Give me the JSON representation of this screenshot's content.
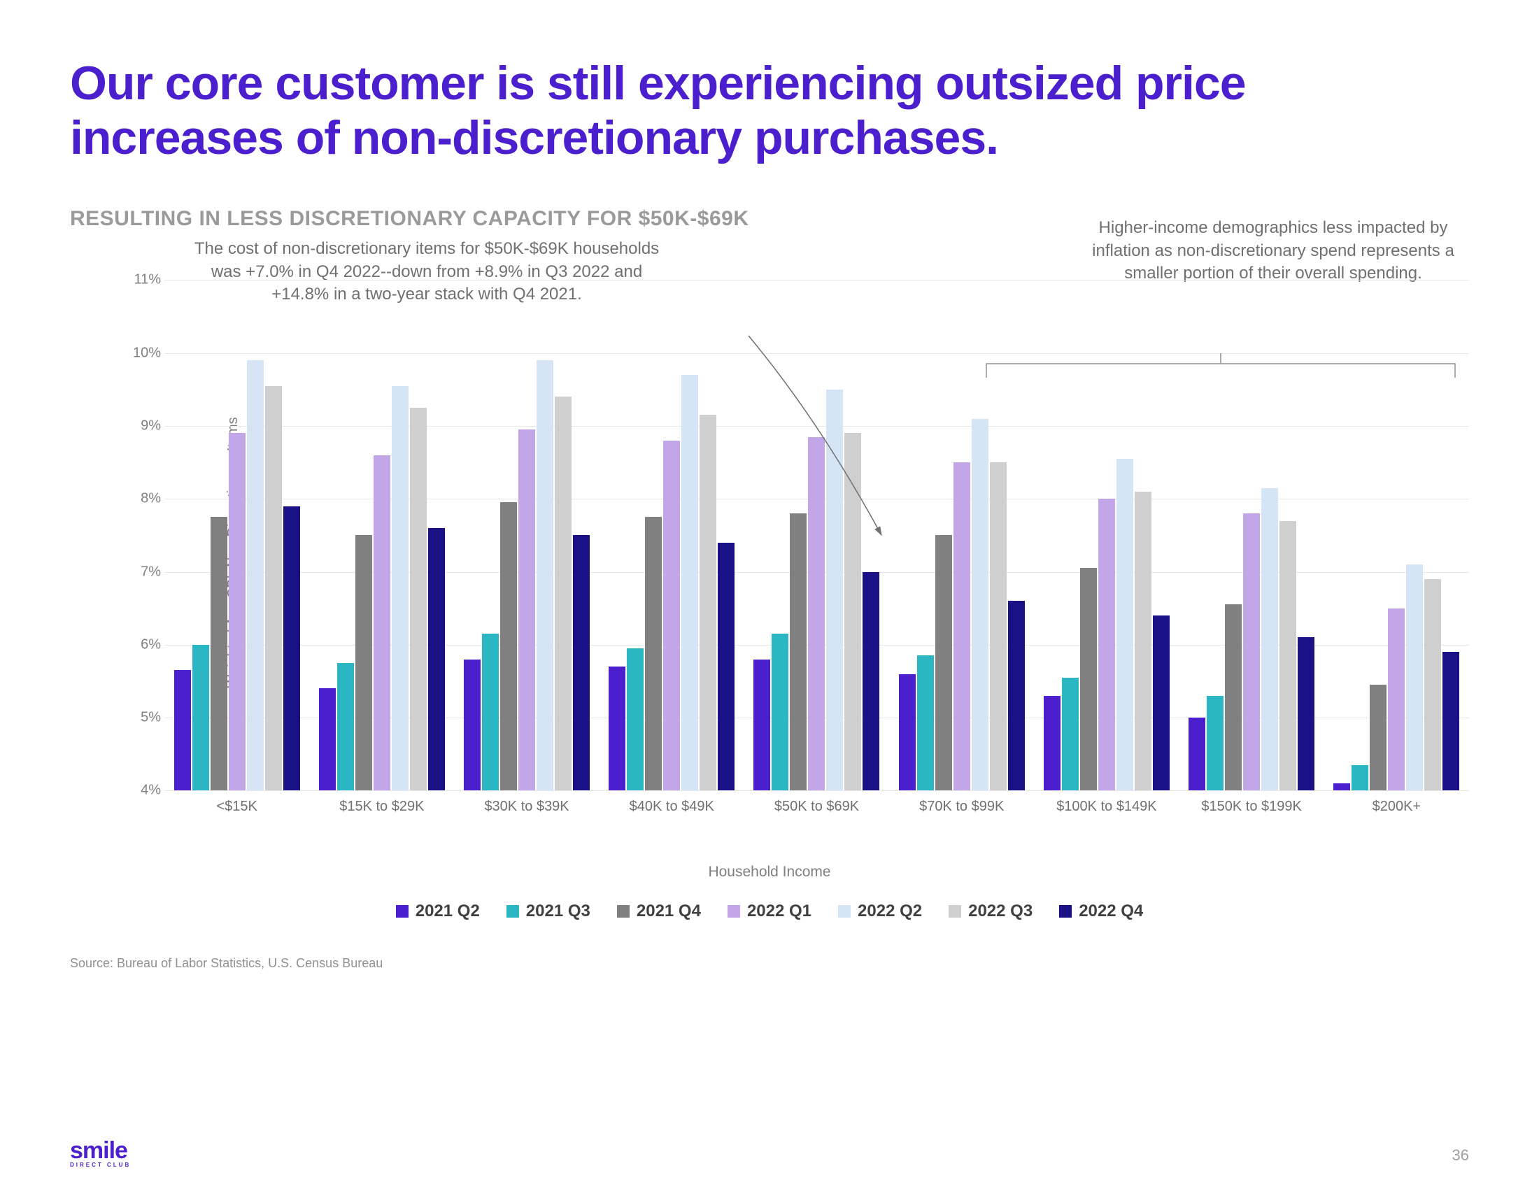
{
  "title": "Our core customer is still experiencing outsized price increases of non-discretionary purchases.",
  "subtitle": "RESULTING IN LESS DISCRETIONARY CAPACITY FOR $50K-$69K",
  "annotation_left": "The cost of non-discretionary items for $50K-$69K households was +7.0% in Q4 2022--down from +8.9% in Q3 2022 and +14.8% in a two-year stack with Q4 2021.",
  "annotation_right": "Higher-income demographics less impacted by inflation as non-discretionary spend represents a smaller portion of their overall spending.",
  "chart": {
    "type": "grouped_bar",
    "ylabel": "Weighted Avg CPI, Non-Discretionary Items",
    "xlabel": "Household Income",
    "ylim": [
      4,
      11
    ],
    "ytick_step": 1,
    "ytick_suffix": "%",
    "grid_color": "#e8e8e8",
    "background_color": "#ffffff",
    "categories": [
      "<$15K",
      "$15K to $29K",
      "$30K to $39K",
      "$40K to $49K",
      "$50K to $69K",
      "$70K to $99K",
      "$100K to $149K",
      "$150K to $199K",
      "$200K+"
    ],
    "series": [
      {
        "label": "2021 Q2",
        "color": "#4b1fce",
        "values": [
          5.65,
          5.4,
          5.8,
          5.7,
          5.8,
          5.6,
          5.3,
          5.0,
          4.1
        ]
      },
      {
        "label": "2021 Q3",
        "color": "#2bb6c4",
        "values": [
          6.0,
          5.75,
          6.15,
          5.95,
          6.15,
          5.85,
          5.55,
          5.3,
          4.35
        ]
      },
      {
        "label": "2021 Q4",
        "color": "#808080",
        "values": [
          7.75,
          7.5,
          7.95,
          7.75,
          7.8,
          7.5,
          7.05,
          6.55,
          5.45
        ]
      },
      {
        "label": "2022 Q1",
        "color": "#c3a6e8",
        "values": [
          8.9,
          8.6,
          8.95,
          8.8,
          8.85,
          8.5,
          8.0,
          7.8,
          6.5
        ]
      },
      {
        "label": "2022 Q2",
        "color": "#d6e5f5",
        "values": [
          9.9,
          9.55,
          9.9,
          9.7,
          9.5,
          9.1,
          8.55,
          8.15,
          7.1
        ]
      },
      {
        "label": "2022 Q3",
        "color": "#cfcfcf",
        "values": [
          9.55,
          9.25,
          9.4,
          9.15,
          8.9,
          8.5,
          8.1,
          7.7,
          6.9
        ]
      },
      {
        "label": "2022 Q4",
        "color": "#1a1187",
        "values": [
          7.9,
          7.6,
          7.5,
          7.4,
          7.0,
          6.6,
          6.4,
          6.1,
          5.9
        ]
      }
    ]
  },
  "source": "Source:  Bureau of Labor Statistics, U.S. Census Bureau",
  "logo": "smile",
  "logo_sub": "DIRECT CLUB",
  "page_number": "36",
  "colors": {
    "brand": "#4b1fce",
    "muted": "#9a9a9a",
    "text": "#707070"
  }
}
